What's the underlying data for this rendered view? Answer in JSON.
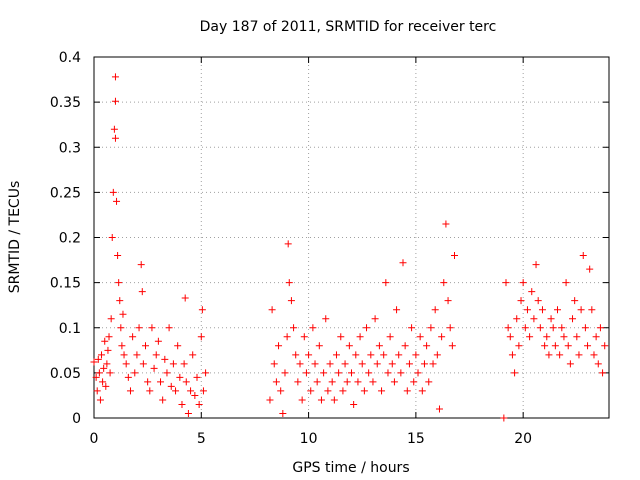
{
  "chart_data": {
    "type": "scatter",
    "title": "Day 187 of 2011, SRMTID for receiver terc",
    "xlabel": "GPS time / hours",
    "ylabel": "SRMTID / TECUs",
    "xlim": [
      0,
      24
    ],
    "ylim": [
      0,
      0.4
    ],
    "x_ticks": [
      0,
      5,
      10,
      15,
      20
    ],
    "x_tick_labels": [
      "0",
      "5",
      "10",
      "15",
      "20"
    ],
    "y_ticks": [
      0,
      0.05,
      0.1,
      0.15,
      0.2,
      0.25,
      0.3,
      0.35,
      0.4
    ],
    "y_tick_labels": [
      "0",
      "0.05",
      "0.1",
      "0.15",
      "0.2",
      "0.25",
      "0.3",
      "0.35",
      "0.4"
    ],
    "grid": true,
    "marker": "+",
    "colors": {
      "points": "#ff0000"
    },
    "series": [
      {
        "values": [
          [
            0.0,
            0.062
          ],
          [
            0.1,
            0.045
          ],
          [
            0.15,
            0.03
          ],
          [
            0.2,
            0.065
          ],
          [
            0.25,
            0.05
          ],
          [
            0.3,
            0.02
          ],
          [
            0.35,
            0.07
          ],
          [
            0.4,
            0.04
          ],
          [
            0.45,
            0.055
          ],
          [
            0.5,
            0.085
          ],
          [
            0.55,
            0.035
          ],
          [
            0.6,
            0.06
          ],
          [
            0.65,
            0.075
          ],
          [
            0.7,
            0.09
          ],
          [
            0.75,
            0.05
          ],
          [
            0.8,
            0.11
          ],
          [
            0.85,
            0.2
          ],
          [
            0.9,
            0.25
          ],
          [
            0.95,
            0.32
          ],
          [
            1.0,
            0.378
          ],
          [
            1.0,
            0.351
          ],
          [
            1.0,
            0.31
          ],
          [
            1.05,
            0.24
          ],
          [
            1.1,
            0.18
          ],
          [
            1.15,
            0.15
          ],
          [
            1.2,
            0.13
          ],
          [
            1.25,
            0.1
          ],
          [
            1.3,
            0.08
          ],
          [
            1.35,
            0.115
          ],
          [
            1.4,
            0.07
          ],
          [
            1.5,
            0.06
          ],
          [
            1.6,
            0.045
          ],
          [
            1.7,
            0.03
          ],
          [
            1.8,
            0.09
          ],
          [
            1.9,
            0.05
          ],
          [
            2.0,
            0.07
          ],
          [
            2.1,
            0.1
          ],
          [
            2.2,
            0.17
          ],
          [
            2.25,
            0.14
          ],
          [
            2.3,
            0.06
          ],
          [
            2.4,
            0.08
          ],
          [
            2.5,
            0.04
          ],
          [
            2.6,
            0.03
          ],
          [
            2.7,
            0.1
          ],
          [
            2.8,
            0.055
          ],
          [
            2.9,
            0.07
          ],
          [
            3.0,
            0.085
          ],
          [
            3.1,
            0.04
          ],
          [
            3.2,
            0.02
          ],
          [
            3.3,
            0.065
          ],
          [
            3.4,
            0.05
          ],
          [
            3.5,
            0.1
          ],
          [
            3.6,
            0.035
          ],
          [
            3.7,
            0.06
          ],
          [
            3.8,
            0.03
          ],
          [
            3.9,
            0.08
          ],
          [
            4.0,
            0.045
          ],
          [
            4.1,
            0.015
          ],
          [
            4.2,
            0.06
          ],
          [
            4.25,
            0.133
          ],
          [
            4.3,
            0.04
          ],
          [
            4.4,
            0.005
          ],
          [
            4.5,
            0.03
          ],
          [
            4.6,
            0.07
          ],
          [
            4.7,
            0.025
          ],
          [
            4.8,
            0.045
          ],
          [
            4.9,
            0.015
          ],
          [
            5.0,
            0.09
          ],
          [
            5.05,
            0.12
          ],
          [
            5.1,
            0.03
          ],
          [
            5.2,
            0.05
          ],
          [
            8.2,
            0.02
          ],
          [
            8.3,
            0.12
          ],
          [
            8.4,
            0.06
          ],
          [
            8.5,
            0.04
          ],
          [
            8.6,
            0.08
          ],
          [
            8.7,
            0.03
          ],
          [
            8.8,
            0.005
          ],
          [
            8.9,
            0.05
          ],
          [
            9.0,
            0.09
          ],
          [
            9.05,
            0.193
          ],
          [
            9.1,
            0.15
          ],
          [
            9.2,
            0.13
          ],
          [
            9.3,
            0.1
          ],
          [
            9.4,
            0.07
          ],
          [
            9.5,
            0.04
          ],
          [
            9.6,
            0.06
          ],
          [
            9.7,
            0.02
          ],
          [
            9.8,
            0.09
          ],
          [
            9.9,
            0.05
          ],
          [
            10.0,
            0.07
          ],
          [
            10.1,
            0.03
          ],
          [
            10.2,
            0.1
          ],
          [
            10.3,
            0.06
          ],
          [
            10.4,
            0.04
          ],
          [
            10.5,
            0.08
          ],
          [
            10.6,
            0.02
          ],
          [
            10.7,
            0.05
          ],
          [
            10.8,
            0.11
          ],
          [
            10.9,
            0.03
          ],
          [
            11.0,
            0.06
          ],
          [
            11.1,
            0.04
          ],
          [
            11.2,
            0.02
          ],
          [
            11.3,
            0.07
          ],
          [
            11.4,
            0.05
          ],
          [
            11.5,
            0.09
          ],
          [
            11.6,
            0.03
          ],
          [
            11.7,
            0.06
          ],
          [
            11.8,
            0.04
          ],
          [
            11.9,
            0.08
          ],
          [
            12.0,
            0.05
          ],
          [
            12.1,
            0.015
          ],
          [
            12.2,
            0.07
          ],
          [
            12.3,
            0.04
          ],
          [
            12.4,
            0.09
          ],
          [
            12.5,
            0.06
          ],
          [
            12.6,
            0.03
          ],
          [
            12.7,
            0.1
          ],
          [
            12.8,
            0.05
          ],
          [
            12.9,
            0.07
          ],
          [
            13.0,
            0.04
          ],
          [
            13.1,
            0.11
          ],
          [
            13.2,
            0.06
          ],
          [
            13.3,
            0.08
          ],
          [
            13.4,
            0.03
          ],
          [
            13.5,
            0.07
          ],
          [
            13.6,
            0.15
          ],
          [
            13.7,
            0.05
          ],
          [
            13.8,
            0.09
          ],
          [
            13.9,
            0.06
          ],
          [
            14.0,
            0.04
          ],
          [
            14.1,
            0.12
          ],
          [
            14.2,
            0.07
          ],
          [
            14.3,
            0.05
          ],
          [
            14.4,
            0.172
          ],
          [
            14.5,
            0.08
          ],
          [
            14.6,
            0.03
          ],
          [
            14.7,
            0.06
          ],
          [
            14.8,
            0.1
          ],
          [
            14.9,
            0.04
          ],
          [
            15.0,
            0.07
          ],
          [
            15.1,
            0.05
          ],
          [
            15.2,
            0.09
          ],
          [
            15.3,
            0.03
          ],
          [
            15.4,
            0.06
          ],
          [
            15.5,
            0.08
          ],
          [
            15.6,
            0.04
          ],
          [
            15.7,
            0.1
          ],
          [
            15.8,
            0.06
          ],
          [
            15.9,
            0.12
          ],
          [
            16.0,
            0.07
          ],
          [
            16.1,
            0.01
          ],
          [
            16.2,
            0.09
          ],
          [
            16.3,
            0.15
          ],
          [
            16.4,
            0.215
          ],
          [
            16.5,
            0.13
          ],
          [
            16.6,
            0.1
          ],
          [
            16.7,
            0.08
          ],
          [
            16.8,
            0.18
          ],
          [
            19.1,
            0.0
          ],
          [
            19.2,
            0.15
          ],
          [
            19.3,
            0.1
          ],
          [
            19.4,
            0.09
          ],
          [
            19.5,
            0.07
          ],
          [
            19.6,
            0.05
          ],
          [
            19.7,
            0.11
          ],
          [
            19.8,
            0.08
          ],
          [
            19.9,
            0.13
          ],
          [
            20.0,
            0.15
          ],
          [
            20.1,
            0.1
          ],
          [
            20.2,
            0.12
          ],
          [
            20.3,
            0.09
          ],
          [
            20.4,
            0.14
          ],
          [
            20.5,
            0.11
          ],
          [
            20.6,
            0.17
          ],
          [
            20.7,
            0.13
          ],
          [
            20.8,
            0.1
          ],
          [
            20.9,
            0.12
          ],
          [
            21.0,
            0.08
          ],
          [
            21.1,
            0.09
          ],
          [
            21.2,
            0.07
          ],
          [
            21.3,
            0.11
          ],
          [
            21.4,
            0.1
          ],
          [
            21.5,
            0.08
          ],
          [
            21.6,
            0.12
          ],
          [
            21.7,
            0.07
          ],
          [
            21.8,
            0.1
          ],
          [
            21.9,
            0.09
          ],
          [
            22.0,
            0.15
          ],
          [
            22.1,
            0.08
          ],
          [
            22.2,
            0.06
          ],
          [
            22.3,
            0.11
          ],
          [
            22.4,
            0.13
          ],
          [
            22.5,
            0.09
          ],
          [
            22.6,
            0.07
          ],
          [
            22.7,
            0.12
          ],
          [
            22.8,
            0.18
          ],
          [
            22.9,
            0.1
          ],
          [
            23.0,
            0.08
          ],
          [
            23.1,
            0.165
          ],
          [
            23.2,
            0.12
          ],
          [
            23.3,
            0.07
          ],
          [
            23.4,
            0.09
          ],
          [
            23.5,
            0.06
          ],
          [
            23.6,
            0.1
          ],
          [
            23.7,
            0.05
          ],
          [
            23.8,
            0.08
          ]
        ]
      }
    ]
  }
}
